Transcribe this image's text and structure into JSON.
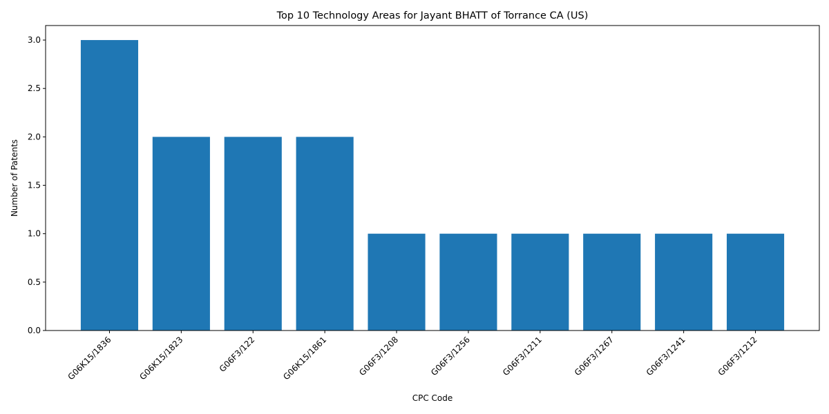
{
  "chart_data": {
    "type": "bar",
    "title": "Top 10 Technology Areas for Jayant BHATT of Torrance CA (US)",
    "xlabel": "CPC Code",
    "ylabel": "Number of Patents",
    "categories": [
      "G06K15/1836",
      "G06K15/1823",
      "G06F3/122",
      "G06K15/1861",
      "G06F3/1208",
      "G06F3/1256",
      "G06F3/1211",
      "G06F3/1267",
      "G06F3/1241",
      "G06F3/1212"
    ],
    "values": [
      3,
      2,
      2,
      2,
      1,
      1,
      1,
      1,
      1,
      1
    ],
    "ylim": [
      0,
      3.15
    ],
    "yticks": [
      "0.0",
      "0.5",
      "1.0",
      "1.5",
      "2.0",
      "2.5",
      "3.0"
    ],
    "bar_color": "#1f77b4",
    "grid": false,
    "legend": "none"
  }
}
